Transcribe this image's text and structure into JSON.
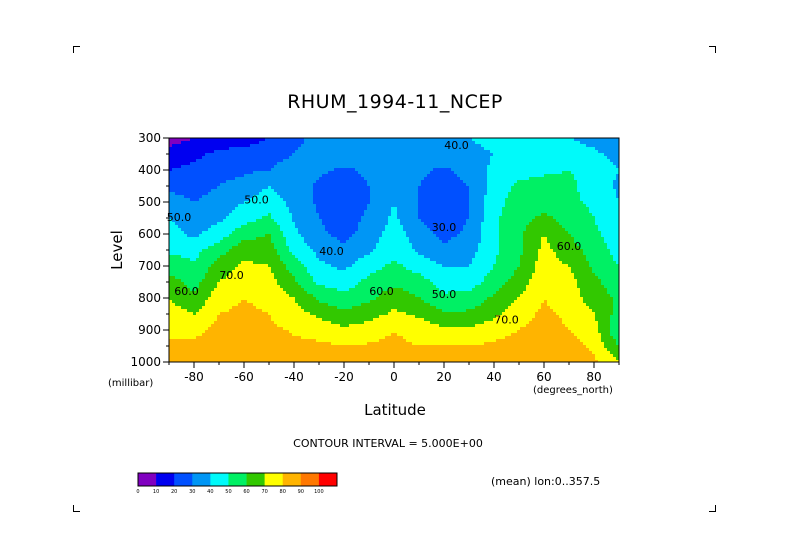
{
  "chart_data": {
    "type": "heatmap",
    "title": "RHUM_1994-11_NCEP",
    "xlabel": "Latitude",
    "ylabel": "Level",
    "x_units": "(degrees_north)",
    "y_units": "(millibar)",
    "xlim": [
      -90,
      90
    ],
    "ylim": [
      1000,
      300
    ],
    "x_ticks": [
      -80,
      -60,
      -40,
      -20,
      0,
      20,
      40,
      60,
      80
    ],
    "x_tick_labels": [
      "-80",
      "-60",
      "-40",
      "-20",
      "0",
      "20",
      "40",
      "60",
      "80"
    ],
    "y_ticks": [
      300,
      400,
      500,
      600,
      700,
      800,
      900,
      1000
    ],
    "y_tick_labels": [
      "300",
      "400",
      "500",
      "600",
      "700",
      "800",
      "900",
      "1000"
    ],
    "contour_interval_text": "CONTOUR INTERVAL = 5.000E+00",
    "subtitle": "(mean) lon:0..357.5",
    "colorbar": {
      "levels": [
        0,
        10,
        20,
        30,
        40,
        50,
        60,
        70,
        80,
        90,
        100
      ],
      "labels": [
        "0",
        "10",
        "20",
        "30",
        "40",
        "50",
        "60",
        "70",
        "80",
        "90",
        "100"
      ],
      "colors": [
        "#8000c0",
        "#0000f0",
        "#0050ff",
        "#0096f5",
        "#00fafa",
        "#00f064",
        "#32c800",
        "#ffff00",
        "#ffb400",
        "#ff7800",
        "#ff0000"
      ]
    },
    "contour_labels": [
      {
        "text": "40.0",
        "lat": 25,
        "lev": 335
      },
      {
        "text": "50.0",
        "lat": -55,
        "lev": 505
      },
      {
        "text": "40.0",
        "lat": -25,
        "lev": 665
      },
      {
        "text": "30.0",
        "lat": 20,
        "lev": 590
      },
      {
        "text": "60.0",
        "lat": -5,
        "lev": 790
      },
      {
        "text": "50.0",
        "lat": 20,
        "lev": 800
      },
      {
        "text": "70.0",
        "lat": -65,
        "lev": 740
      },
      {
        "text": "60.0",
        "lat": -83,
        "lev": 790
      },
      {
        "text": "70.0",
        "lat": 45,
        "lev": 880
      },
      {
        "text": "60.0",
        "lat": 70,
        "lev": 650
      },
      {
        "text": "50.0",
        "lat": -86,
        "lev": 560
      }
    ],
    "grid_lat": [
      -90,
      -80,
      -70,
      -60,
      -50,
      -40,
      -30,
      -20,
      -10,
      0,
      10,
      20,
      30,
      40,
      50,
      60,
      70,
      80,
      90
    ],
    "grid_lev": [
      300,
      350,
      400,
      450,
      500,
      550,
      600,
      650,
      700,
      750,
      800,
      850,
      900,
      950,
      1000
    ],
    "values": [
      [
        5,
        10,
        14,
        15,
        20,
        25,
        36,
        38,
        40,
        40,
        40,
        40,
        40,
        42,
        40,
        42,
        40,
        36,
        32
      ],
      [
        14,
        18,
        22,
        24,
        26,
        30,
        38,
        38,
        38,
        38,
        38,
        38,
        38,
        40,
        42,
        44,
        46,
        42,
        36
      ],
      [
        20,
        22,
        26,
        28,
        30,
        35,
        32,
        28,
        32,
        40,
        32,
        28,
        34,
        42,
        46,
        48,
        50,
        46,
        40
      ],
      [
        28,
        26,
        30,
        34,
        40,
        35,
        28,
        24,
        30,
        40,
        30,
        24,
        30,
        44,
        52,
        54,
        52,
        46,
        38
      ],
      [
        34,
        30,
        34,
        40,
        45,
        37,
        28,
        24,
        30,
        40,
        30,
        24,
        30,
        46,
        55,
        57,
        52,
        48,
        40
      ],
      [
        40,
        34,
        38,
        46,
        52,
        39,
        30,
        25,
        32,
        42,
        30,
        25,
        30,
        48,
        56,
        62,
        56,
        50,
        42
      ],
      [
        44,
        38,
        45,
        56,
        60,
        42,
        32,
        27,
        34,
        45,
        34,
        27,
        32,
        48,
        58,
        70,
        60,
        52,
        44
      ],
      [
        48,
        46,
        56,
        66,
        65,
        47,
        37,
        32,
        38,
        48,
        38,
        32,
        36,
        48,
        58,
        73,
        64,
        56,
        46
      ],
      [
        56,
        52,
        64,
        72,
        70,
        55,
        42,
        38,
        46,
        52,
        46,
        40,
        40,
        50,
        60,
        75,
        70,
        58,
        50
      ],
      [
        64,
        56,
        70,
        77,
        74,
        62,
        48,
        45,
        53,
        58,
        54,
        46,
        45,
        55,
        64,
        78,
        74,
        62,
        55
      ],
      [
        70,
        62,
        76,
        80,
        77,
        70,
        58,
        53,
        58,
        66,
        60,
        52,
        53,
        62,
        70,
        80,
        75,
        65,
        58
      ],
      [
        75,
        70,
        80,
        82,
        80,
        74,
        68,
        62,
        66,
        72,
        68,
        62,
        62,
        68,
        76,
        82,
        78,
        70,
        56
      ],
      [
        78,
        77,
        83,
        84,
        82,
        79,
        76,
        72,
        75,
        80,
        76,
        72,
        72,
        75,
        80,
        84,
        80,
        74,
        50
      ],
      [
        82,
        82,
        86,
        86,
        84,
        82,
        82,
        80,
        81,
        82,
        80,
        80,
        80,
        82,
        84,
        86,
        84,
        78,
        60
      ],
      [
        86,
        86,
        90,
        88,
        86,
        85,
        84,
        83,
        84,
        85,
        84,
        83,
        83,
        85,
        86,
        88,
        86,
        82,
        70
      ]
    ]
  }
}
